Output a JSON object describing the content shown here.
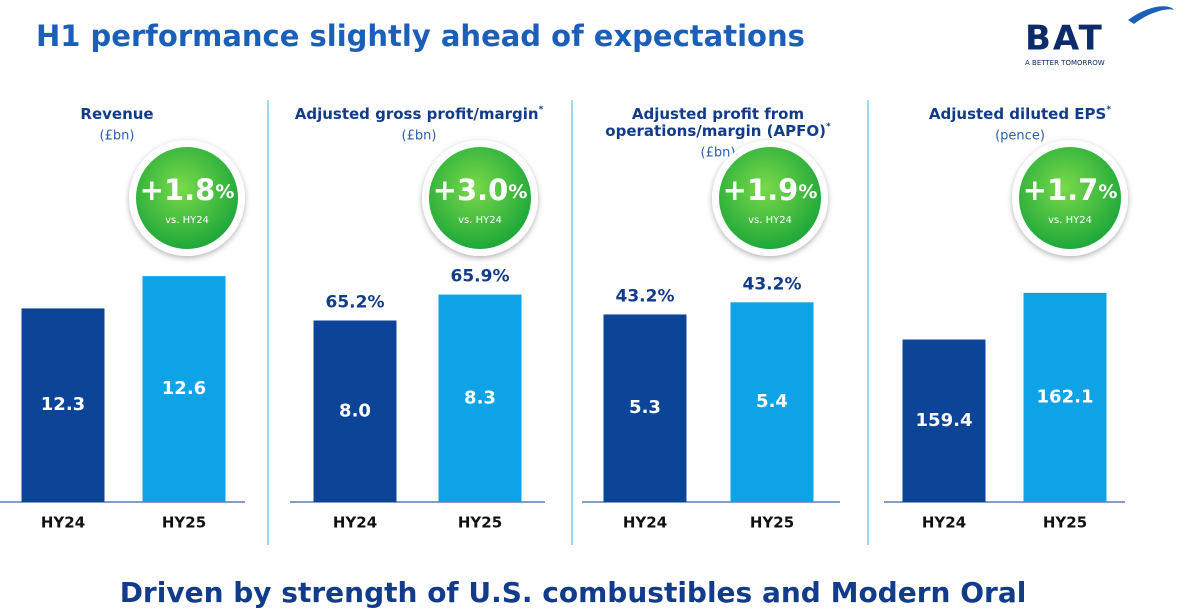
{
  "title": "H1 performance slightly ahead of expectations",
  "footer": "Driven by strength of U.S. combustibles and Modern Oral",
  "logo": {
    "name": "BAT",
    "tagline": "A BETTER TOMORROW"
  },
  "chart_data": [
    {
      "type": "bar",
      "title": [
        "Revenue"
      ],
      "title_mark": null,
      "subtitle": "(£bn)",
      "categories": [
        "HY24",
        "HY25"
      ],
      "values": [
        12.3,
        12.6
      ],
      "value_labels": [
        "12.3",
        "12.6"
      ],
      "colors": [
        "#0c4497",
        "#0ea2e6"
      ],
      "ylim": [
        10.5,
        12.75
      ],
      "growth": 1.8,
      "growth_label": "+1.8",
      "growth_unit": "%",
      "growth_note": "vs. HY24"
    },
    {
      "type": "bar",
      "title": [
        "Adjusted gross profit/margin"
      ],
      "title_mark": "*",
      "subtitle": "(£bn)",
      "categories": [
        "HY24",
        "HY25"
      ],
      "values": [
        8.0,
        8.3
      ],
      "value_labels": [
        "8.0",
        "8.3"
      ],
      "margins": [
        65.2,
        65.9
      ],
      "margin_labels": [
        "65.2%",
        "65.9%"
      ],
      "colors": [
        "#0c4497",
        "#0ea2e6"
      ],
      "ylim": [
        5.9,
        8.7
      ],
      "growth": 3.0,
      "growth_label": "+3.0",
      "growth_unit": "%",
      "growth_note": "vs. HY24"
    },
    {
      "type": "bar",
      "title": [
        "Adjusted profit from",
        "operations/margin (APFO)"
      ],
      "title_mark": "*",
      "subtitle": "(£bn)",
      "categories": [
        "HY24",
        "HY25"
      ],
      "values": [
        5.3,
        5.4
      ],
      "value_labels": [
        "5.3",
        "5.4"
      ],
      "margins": [
        43.2,
        43.2
      ],
      "margin_labels": [
        "43.2%",
        "43.2%"
      ],
      "colors": [
        "#0c4497",
        "#0ea2e6"
      ],
      "ylim": [
        3.75,
        5.75
      ],
      "growth": 1.9,
      "growth_label": "+1.9",
      "growth_unit": "%",
      "growth_note": "vs. HY24"
    },
    {
      "type": "bar",
      "title": [
        "Adjusted diluted EPS"
      ],
      "title_mark": "*",
      "subtitle": "(pence)",
      "categories": [
        "HY24",
        "HY25"
      ],
      "values": [
        159.4,
        162.1
      ],
      "value_labels": [
        "159.4",
        "162.1"
      ],
      "colors": [
        "#0c4497",
        "#0ea2e6"
      ],
      "ylim": [
        150,
        164
      ],
      "growth": 1.7,
      "growth_label": "+1.7",
      "growth_unit": "%",
      "growth_note": "vs. HY24"
    }
  ]
}
